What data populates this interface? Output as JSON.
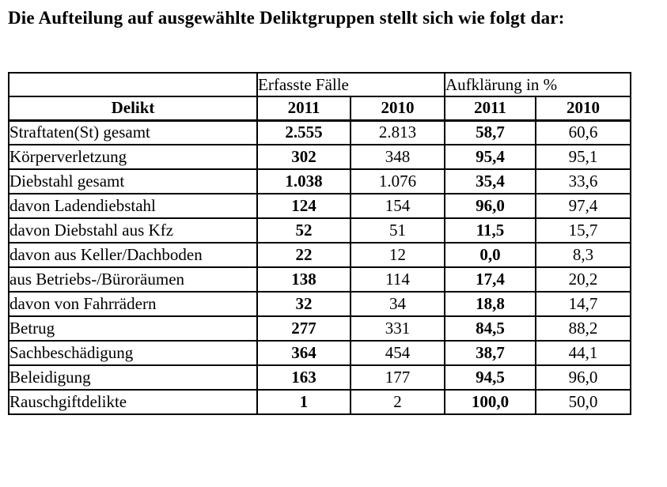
{
  "title": "Die Aufteilung auf ausgewählte Deliktgruppen stellt sich wie folgt dar:",
  "table": {
    "group_headers": [
      {
        "label": "",
        "span": 1
      },
      {
        "label": "Erfasste Fälle",
        "span": 2
      },
      {
        "label": "Aufklärung in %",
        "span": 2
      }
    ],
    "column_headers": [
      "Delikt",
      "2011",
      "2010",
      "2011",
      "2010"
    ],
    "rows": [
      [
        "Straftaten(St) gesamt",
        "2.555",
        "2.813",
        "58,7",
        "60,6"
      ],
      [
        "Körperverletzung",
        "302",
        "348",
        "95,4",
        "95,1"
      ],
      [
        "Diebstahl gesamt",
        "1.038",
        "1.076",
        "35,4",
        "33,6"
      ],
      [
        "davon Ladendiebstahl",
        "124",
        "154",
        "96,0",
        "97,4"
      ],
      [
        "davon Diebstahl aus Kfz",
        "52",
        "51",
        "11,5",
        "15,7"
      ],
      [
        "davon aus Keller/Dachboden",
        "22",
        "12",
        "0,0",
        "8,3"
      ],
      [
        "aus Betriebs-/Büroräumen",
        "138",
        "114",
        "17,4",
        "20,2"
      ],
      [
        "davon von Fahrrädern",
        "32",
        "34",
        "18,8",
        "14,7"
      ],
      [
        "Betrug",
        "277",
        "331",
        "84,5",
        "88,2"
      ],
      [
        "Sachbeschädigung",
        "364",
        "454",
        "38,7",
        "44,1"
      ],
      [
        "Beleidigung",
        "163",
        "177",
        "94,5",
        "96,0"
      ],
      [
        "Rauschgiftdelikte",
        "1",
        "2",
        "100,0",
        "50,0"
      ]
    ]
  }
}
